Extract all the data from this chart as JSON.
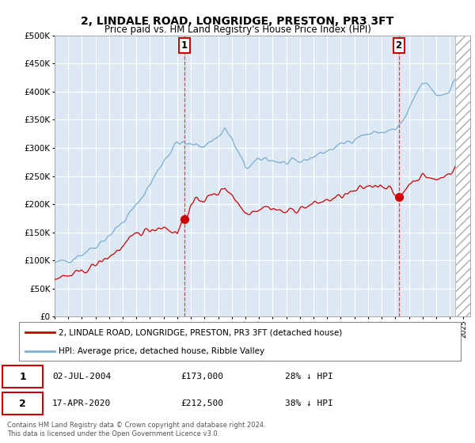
{
  "title": "2, LINDALE ROAD, LONGRIDGE, PRESTON, PR3 3FT",
  "subtitle": "Price paid vs. HM Land Registry's House Price Index (HPI)",
  "legend_line1": "2, LINDALE ROAD, LONGRIDGE, PRESTON, PR3 3FT (detached house)",
  "legend_line2": "HPI: Average price, detached house, Ribble Valley",
  "annotation1_date": "02-JUL-2004",
  "annotation1_price": "£173,000",
  "annotation1_hpi": "28% ↓ HPI",
  "annotation2_date": "17-APR-2020",
  "annotation2_price": "£212,500",
  "annotation2_hpi": "38% ↓ HPI",
  "footnote": "Contains HM Land Registry data © Crown copyright and database right 2024.\nThis data is licensed under the Open Government Licence v3.0.",
  "red_color": "#cc0000",
  "blue_color": "#7aadcf",
  "plot_bg": "#dce9f5",
  "grid_color": "#ffffff",
  "sale1_x": 2004.5,
  "sale1_y": 173000,
  "sale2_x": 2020.25,
  "sale2_y": 212500,
  "ylim_min": 0,
  "ylim_max": 500000,
  "yticks": [
    0,
    50000,
    100000,
    150000,
    200000,
    250000,
    300000,
    350000,
    400000,
    450000,
    500000
  ],
  "xlim_min": 1995,
  "xlim_max": 2025.5,
  "hatch_start": 2024.42
}
